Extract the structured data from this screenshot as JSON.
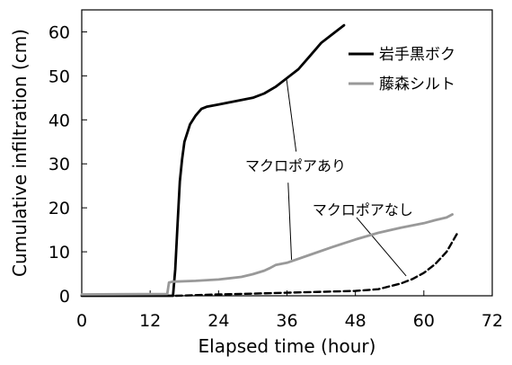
{
  "chart_data": {
    "type": "line",
    "title": "",
    "xlabel": "Elapsed time (hour)",
    "ylabel": "Cumulative infiltration (cm)",
    "xlim": [
      0,
      72
    ],
    "ylim": [
      0,
      65
    ],
    "xticks": [
      0,
      12,
      24,
      36,
      48,
      60,
      72
    ],
    "yticks": [
      0,
      10,
      20,
      30,
      40,
      50,
      60
    ],
    "grid": false,
    "legend_position": "top-right",
    "series": [
      {
        "name": "岩手黒ボク",
        "color": "#000000",
        "style": "solid",
        "x": [
          0,
          15,
          16,
          16.4,
          16.8,
          17.2,
          17.6,
          18,
          19,
          20,
          21,
          22,
          24,
          26,
          28,
          30,
          32,
          34,
          36,
          38,
          40,
          42,
          44,
          46
        ],
        "y": [
          0,
          0,
          0,
          6,
          16,
          26,
          31,
          35,
          39,
          41,
          42.5,
          43,
          43.5,
          44,
          44.5,
          45,
          46,
          47.5,
          49.5,
          51.5,
          54.5,
          57.5,
          59.5,
          61.5
        ]
      },
      {
        "name": "藤森シルト",
        "color": "#999999",
        "style": "solid",
        "x": [
          0,
          15,
          15.3,
          16,
          20,
          24,
          28,
          30,
          32,
          33,
          34,
          36,
          40,
          44,
          48,
          52,
          56,
          60,
          62,
          64,
          65
        ],
        "y": [
          0.3,
          0.4,
          3,
          3.2,
          3.4,
          3.7,
          4.3,
          4.9,
          5.7,
          6.3,
          7,
          7.5,
          9.3,
          11.1,
          12.8,
          14.3,
          15.5,
          16.5,
          17.2,
          17.8,
          18.5
        ]
      },
      {
        "name": "",
        "color": "#000000",
        "style": "dashed",
        "x": [
          16.5,
          24,
          30,
          36,
          42,
          48,
          52,
          56,
          58,
          60,
          62,
          64,
          66
        ],
        "y": [
          0,
          0.3,
          0.5,
          0.7,
          0.9,
          1.1,
          1.5,
          2.8,
          3.8,
          5.2,
          7.2,
          10,
          14.5
        ]
      }
    ],
    "annotations": [
      {
        "text": "マクロポアあり",
        "label_x": 37.5,
        "label_y": 29.6,
        "pointer_from": [
          [
            37.6,
            32.8
          ],
          [
            36.2,
            25.7
          ]
        ],
        "pointer_to": [
          [
            35.9,
            49.5
          ],
          [
            36.8,
            8.2
          ]
        ]
      },
      {
        "text": "マクロポアなし",
        "label_x": 49.3,
        "label_y": 19.6,
        "pointer_from": [
          [
            48.2,
            17.8
          ]
        ],
        "pointer_to": [
          [
            56.9,
            4.5
          ]
        ]
      }
    ]
  }
}
